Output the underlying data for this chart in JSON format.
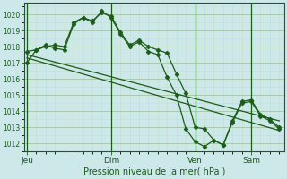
{
  "background_color": "#cde8e8",
  "grid_color_major": "#adc8b0",
  "grid_color_minor": "#c8dfc8",
  "line_color": "#1a5c1a",
  "ylabel": "Pression niveau de la mer( hPa )",
  "ylim": [
    1011.5,
    1020.7
  ],
  "yticks": [
    1012,
    1013,
    1014,
    1015,
    1016,
    1017,
    1018,
    1019,
    1020
  ],
  "day_labels": [
    "Jeu",
    "Dim",
    "Ven",
    "Sam"
  ],
  "day_positions": [
    0,
    9,
    18,
    24
  ],
  "xlim": [
    -0.3,
    27.5
  ],
  "series1_x": [
    0,
    1,
    2,
    3,
    4,
    5,
    6,
    7,
    8,
    9,
    10,
    11,
    12,
    13,
    14,
    15,
    16,
    17,
    18,
    19,
    20,
    21,
    22,
    23,
    24,
    25,
    26,
    27
  ],
  "series1_y": [
    1017.0,
    1017.8,
    1018.0,
    1018.1,
    1018.0,
    1019.5,
    1019.8,
    1019.6,
    1020.1,
    1019.9,
    1018.9,
    1018.1,
    1018.4,
    1018.0,
    1017.8,
    1017.6,
    1016.3,
    1015.1,
    1013.0,
    1012.9,
    1012.2,
    1011.9,
    1013.4,
    1014.6,
    1014.7,
    1013.8,
    1013.5,
    1013.0
  ],
  "series2_x": [
    0,
    1,
    2,
    3,
    4,
    5,
    6,
    7,
    8,
    9,
    10,
    11,
    12,
    13,
    14,
    15,
    16,
    17,
    18,
    19,
    20,
    21,
    22,
    23,
    24,
    25,
    26,
    27
  ],
  "series2_y": [
    1017.7,
    1017.8,
    1018.1,
    1017.9,
    1017.8,
    1019.4,
    1019.8,
    1019.5,
    1020.2,
    1019.8,
    1018.8,
    1018.0,
    1018.3,
    1017.7,
    1017.5,
    1016.1,
    1015.0,
    1012.9,
    1012.1,
    1011.8,
    1012.2,
    1011.9,
    1013.3,
    1014.5,
    1014.6,
    1013.7,
    1013.4,
    1012.9
  ],
  "series3_x": [
    0,
    27
  ],
  "series3_y": [
    1017.5,
    1013.4
  ],
  "series4_x": [
    0,
    27
  ],
  "series4_y": [
    1017.3,
    1012.8
  ]
}
